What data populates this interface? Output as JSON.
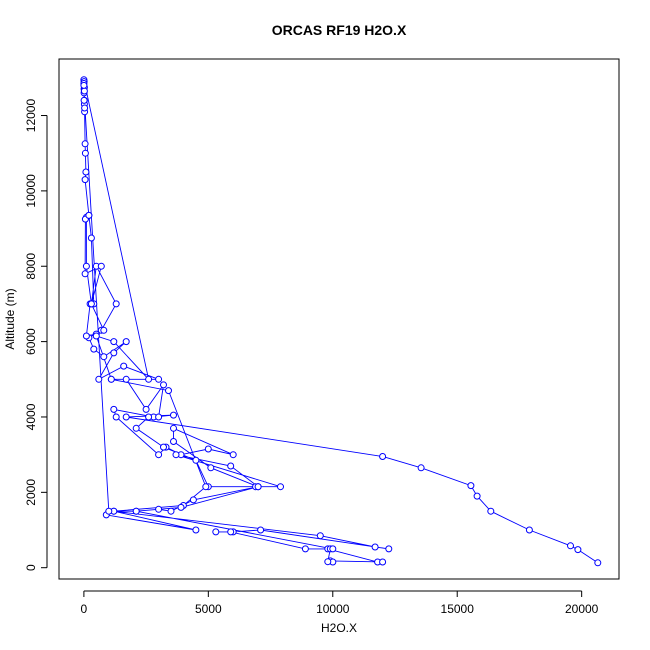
{
  "chart_data": {
    "type": "line",
    "title": "ORCAS RF19 H2O.X",
    "xlabel": "H2O.X",
    "ylabel": "Altitude (m)",
    "xlim": [
      -1000,
      21500
    ],
    "ylim": [
      -300,
      13500
    ],
    "xticks": [
      0,
      5000,
      10000,
      15000,
      20000
    ],
    "yticks": [
      0,
      2000,
      4000,
      6000,
      8000,
      10000,
      12000
    ],
    "grid": false,
    "color": "#0000ff",
    "series": [
      {
        "points": [
          [
            20650,
            130
          ],
          [
            19850,
            480
          ],
          [
            19550,
            580
          ],
          [
            17900,
            1000
          ],
          [
            16350,
            1500
          ],
          [
            15800,
            1900
          ],
          [
            15550,
            2180
          ],
          [
            13550,
            2650
          ],
          [
            12000,
            2950
          ],
          [
            1700,
            4000
          ],
          [
            3600,
            4050
          ],
          [
            2800,
            4000
          ],
          [
            1200,
            4200
          ],
          [
            1300,
            4000
          ],
          [
            3000,
            3000
          ],
          [
            3300,
            3200
          ],
          [
            3900,
            3000
          ],
          [
            5000,
            3150
          ],
          [
            6000,
            3000
          ],
          [
            3600,
            3700
          ],
          [
            3600,
            3350
          ],
          [
            5100,
            2650
          ],
          [
            7000,
            2150
          ],
          [
            7900,
            2150
          ],
          [
            3700,
            3000
          ],
          [
            5900,
            2700
          ],
          [
            7000,
            2150
          ],
          [
            6900,
            2150
          ],
          [
            5000,
            2150
          ],
          [
            4500,
            2850
          ],
          [
            3200,
            3200
          ],
          [
            2100,
            3700
          ],
          [
            2600,
            4000
          ],
          [
            3000,
            4000
          ],
          [
            3200,
            4850
          ],
          [
            2500,
            4200
          ],
          [
            1700,
            5000
          ],
          [
            1100,
            5000
          ],
          [
            3000,
            5000
          ],
          [
            1600,
            5350
          ],
          [
            600,
            5000
          ],
          [
            1200,
            5700
          ],
          [
            1700,
            6000
          ],
          [
            800,
            5600
          ],
          [
            400,
            5800
          ],
          [
            200,
            6100
          ],
          [
            700,
            6300
          ],
          [
            1300,
            7000
          ],
          [
            500,
            8000
          ],
          [
            300,
            7000
          ],
          [
            100,
            8000
          ],
          [
            100,
            9300
          ],
          [
            200,
            9350
          ],
          [
            300,
            8750
          ],
          [
            400,
            7000
          ],
          [
            250,
            7000
          ],
          [
            100,
            6150
          ],
          [
            500,
            6200
          ],
          [
            800,
            6300
          ],
          [
            300,
            7000
          ],
          [
            700,
            8000
          ],
          [
            50,
            7800
          ],
          [
            60,
            9250
          ],
          [
            200,
            9350
          ],
          [
            50,
            10300
          ],
          [
            80,
            10500
          ],
          [
            60,
            11000
          ],
          [
            50,
            11250
          ],
          [
            30,
            12100
          ],
          [
            20,
            12400
          ],
          [
            10,
            12700
          ],
          [
            0,
            12950
          ],
          [
            2600,
            5000
          ],
          [
            1200,
            6000
          ],
          [
            500,
            6150
          ],
          [
            1100,
            5000
          ],
          [
            3400,
            4700
          ],
          [
            4900,
            2150
          ],
          [
            4000,
            1650
          ],
          [
            1200,
            1500
          ],
          [
            4500,
            1000
          ],
          [
            900,
            1400
          ],
          [
            1200,
            1500
          ],
          [
            9500,
            850
          ],
          [
            11700,
            550
          ],
          [
            12250,
            500
          ],
          [
            7100,
            1000
          ],
          [
            6000,
            950
          ],
          [
            5300,
            950
          ],
          [
            5900,
            950
          ],
          [
            8900,
            500
          ],
          [
            9800,
            500
          ],
          [
            11800,
            150
          ],
          [
            12000,
            150
          ],
          [
            9900,
            180
          ],
          [
            10000,
            150
          ],
          [
            9800,
            160
          ],
          [
            9900,
            500
          ],
          [
            10000,
            500
          ],
          [
            2100,
            1500
          ],
          [
            3000,
            1550
          ],
          [
            3500,
            1500
          ],
          [
            4400,
            1800
          ],
          [
            7000,
            2150
          ],
          [
            3900,
            1600
          ],
          [
            2100,
            1500
          ],
          [
            1000,
            1500
          ],
          [
            10,
            12600
          ],
          [
            20,
            12300
          ],
          [
            30,
            12200
          ],
          [
            10,
            12900
          ],
          [
            20,
            12750
          ],
          [
            0,
            12850
          ],
          [
            10,
            12400
          ],
          [
            20,
            12650
          ],
          [
            0,
            12800
          ]
        ]
      }
    ]
  }
}
